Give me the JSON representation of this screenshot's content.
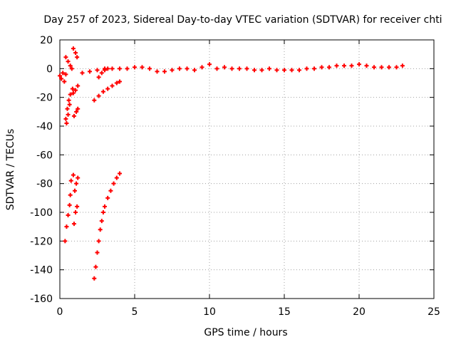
{
  "chart_data": {
    "type": "scatter",
    "title": "Day 257 of 2023, Sidereal Day-to-day VTEC variation (SDTVAR) for receiver chti",
    "xlabel": "GPS time / hours",
    "ylabel": "SDTVAR / TECUs",
    "xlim": [
      0,
      25
    ],
    "ylim": [
      -160,
      20
    ],
    "xticks": [
      0,
      5,
      10,
      15,
      20,
      25
    ],
    "yticks": [
      20,
      0,
      -20,
      -40,
      -60,
      -80,
      -100,
      -120,
      -140,
      -160
    ],
    "grid": true,
    "legend": "none",
    "marker": "plus",
    "color": "#ff0000",
    "series": [
      {
        "points": [
          [
            0.0,
            -5
          ],
          [
            0.1,
            -7
          ],
          [
            0.2,
            -3
          ],
          [
            0.3,
            -9
          ],
          [
            0.4,
            -4
          ],
          [
            0.35,
            -120
          ],
          [
            0.45,
            -110
          ],
          [
            0.55,
            -102
          ],
          [
            0.65,
            -95
          ],
          [
            0.7,
            -88
          ],
          [
            0.4,
            -35
          ],
          [
            0.5,
            -28
          ],
          [
            0.6,
            -22
          ],
          [
            0.7,
            -18
          ],
          [
            0.85,
            -14
          ],
          [
            0.45,
            -38
          ],
          [
            0.55,
            -32
          ],
          [
            0.65,
            -25
          ],
          [
            0.4,
            8
          ],
          [
            0.55,
            5
          ],
          [
            0.7,
            2
          ],
          [
            0.8,
            0
          ],
          [
            0.75,
            -78
          ],
          [
            0.9,
            -74
          ],
          [
            0.95,
            -33
          ],
          [
            1.1,
            -30
          ],
          [
            1.2,
            -28
          ],
          [
            0.95,
            -108
          ],
          [
            1.05,
            -100
          ],
          [
            1.15,
            -96
          ],
          [
            1.0,
            -85
          ],
          [
            1.1,
            -80
          ],
          [
            1.2,
            -76
          ],
          [
            0.9,
            14
          ],
          [
            1.05,
            11
          ],
          [
            1.15,
            8
          ],
          [
            0.9,
            -17
          ],
          [
            1.05,
            -15
          ],
          [
            1.2,
            -12
          ],
          [
            1.5,
            -3
          ],
          [
            2.0,
            -2
          ],
          [
            2.5,
            -1
          ],
          [
            3.0,
            0
          ],
          [
            3.5,
            0
          ],
          [
            4.0,
            0
          ],
          [
            4.5,
            0
          ],
          [
            5.0,
            1
          ],
          [
            5.5,
            1
          ],
          [
            6.0,
            0
          ],
          [
            6.5,
            -2
          ],
          [
            7.0,
            -2
          ],
          [
            7.5,
            -1
          ],
          [
            8.0,
            0
          ],
          [
            8.5,
            0
          ],
          [
            9.0,
            -1
          ],
          [
            9.5,
            1
          ],
          [
            10.0,
            3
          ],
          [
            10.5,
            0
          ],
          [
            11.0,
            1
          ],
          [
            11.5,
            0
          ],
          [
            12.0,
            0
          ],
          [
            12.5,
            0
          ],
          [
            13.0,
            -1
          ],
          [
            13.5,
            -1
          ],
          [
            14.0,
            0
          ],
          [
            14.5,
            -1
          ],
          [
            15.0,
            -1
          ],
          [
            15.5,
            -1
          ],
          [
            16.0,
            -1
          ],
          [
            16.5,
            0
          ],
          [
            17.0,
            0
          ],
          [
            17.5,
            1
          ],
          [
            18.0,
            1
          ],
          [
            18.5,
            2
          ],
          [
            19.0,
            2
          ],
          [
            19.5,
            2
          ],
          [
            20.0,
            3
          ],
          [
            20.5,
            2
          ],
          [
            21.0,
            1
          ],
          [
            21.5,
            1
          ],
          [
            22.0,
            1
          ],
          [
            22.5,
            1
          ],
          [
            22.9,
            2
          ],
          [
            2.3,
            -146
          ],
          [
            2.4,
            -138
          ],
          [
            2.5,
            -128
          ],
          [
            2.6,
            -120
          ],
          [
            2.7,
            -112
          ],
          [
            2.8,
            -106
          ],
          [
            2.9,
            -100
          ],
          [
            3.0,
            -96
          ],
          [
            3.2,
            -90
          ],
          [
            3.4,
            -85
          ],
          [
            3.6,
            -80
          ],
          [
            3.8,
            -76
          ],
          [
            4.0,
            -73
          ],
          [
            2.3,
            -22
          ],
          [
            2.6,
            -19
          ],
          [
            2.9,
            -16
          ],
          [
            3.2,
            -14
          ],
          [
            3.5,
            -12
          ],
          [
            3.8,
            -10
          ],
          [
            4.0,
            -9
          ],
          [
            2.6,
            -6
          ],
          [
            2.8,
            -3
          ],
          [
            3.0,
            -1
          ],
          [
            3.2,
            0
          ]
        ]
      }
    ]
  }
}
